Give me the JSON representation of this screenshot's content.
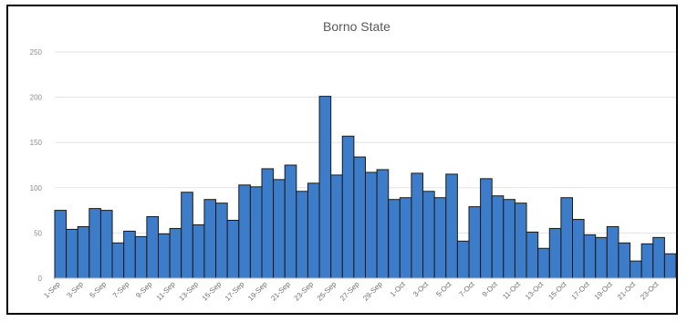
{
  "chart_data": {
    "type": "bar",
    "title": "Borno State",
    "xlabel": "",
    "ylabel": "",
    "ylim": [
      0,
      250
    ],
    "yticks": [
      0,
      50,
      100,
      150,
      200,
      250
    ],
    "grid": true,
    "legend": "none",
    "bar_color": "#3d7cc9",
    "bar_edge_color": "#1a1a1a",
    "x_tick_labels": [
      "1-Sep",
      "3-Sep",
      "5-Sep",
      "7-Sep",
      "9-Sep",
      "11-Sep",
      "13-Sep",
      "15-Sep",
      "17-Sep",
      "19-Sep",
      "21-Sep",
      "23-Sep",
      "25-Sep",
      "27-Sep",
      "29-Sep",
      "1-Oct",
      "3-Oct",
      "5-Oct",
      "7-Oct",
      "9-Oct",
      "11-Oct",
      "13-Oct",
      "15-Oct",
      "17-Oct",
      "19-Oct",
      "21-Oct",
      "23-Oct"
    ],
    "categories": [
      "1-Sep",
      "2-Sep",
      "3-Sep",
      "4-Sep",
      "5-Sep",
      "6-Sep",
      "7-Sep",
      "8-Sep",
      "9-Sep",
      "10-Sep",
      "11-Sep",
      "12-Sep",
      "13-Sep",
      "14-Sep",
      "15-Sep",
      "16-Sep",
      "17-Sep",
      "18-Sep",
      "19-Sep",
      "20-Sep",
      "21-Sep",
      "22-Sep",
      "23-Sep",
      "24-Sep",
      "25-Sep",
      "26-Sep",
      "27-Sep",
      "28-Sep",
      "29-Sep",
      "30-Sep",
      "1-Oct",
      "2-Oct",
      "3-Oct",
      "4-Oct",
      "5-Oct",
      "6-Oct",
      "7-Oct",
      "8-Oct",
      "9-Oct",
      "10-Oct",
      "11-Oct",
      "12-Oct",
      "13-Oct",
      "14-Oct",
      "15-Oct",
      "16-Oct",
      "17-Oct",
      "18-Oct",
      "19-Oct",
      "20-Oct",
      "21-Oct",
      "22-Oct",
      "23-Oct",
      "24-Oct"
    ],
    "values": [
      75,
      54,
      57,
      77,
      75,
      39,
      52,
      46,
      68,
      49,
      55,
      95,
      59,
      87,
      83,
      64,
      103,
      101,
      121,
      109,
      125,
      96,
      105,
      201,
      114,
      157,
      134,
      117,
      120,
      87,
      89,
      116,
      96,
      89,
      115,
      41,
      79,
      110,
      91,
      87,
      83,
      51,
      33,
      55,
      89,
      65,
      48,
      45,
      57,
      39,
      19,
      38,
      45,
      27
    ]
  }
}
